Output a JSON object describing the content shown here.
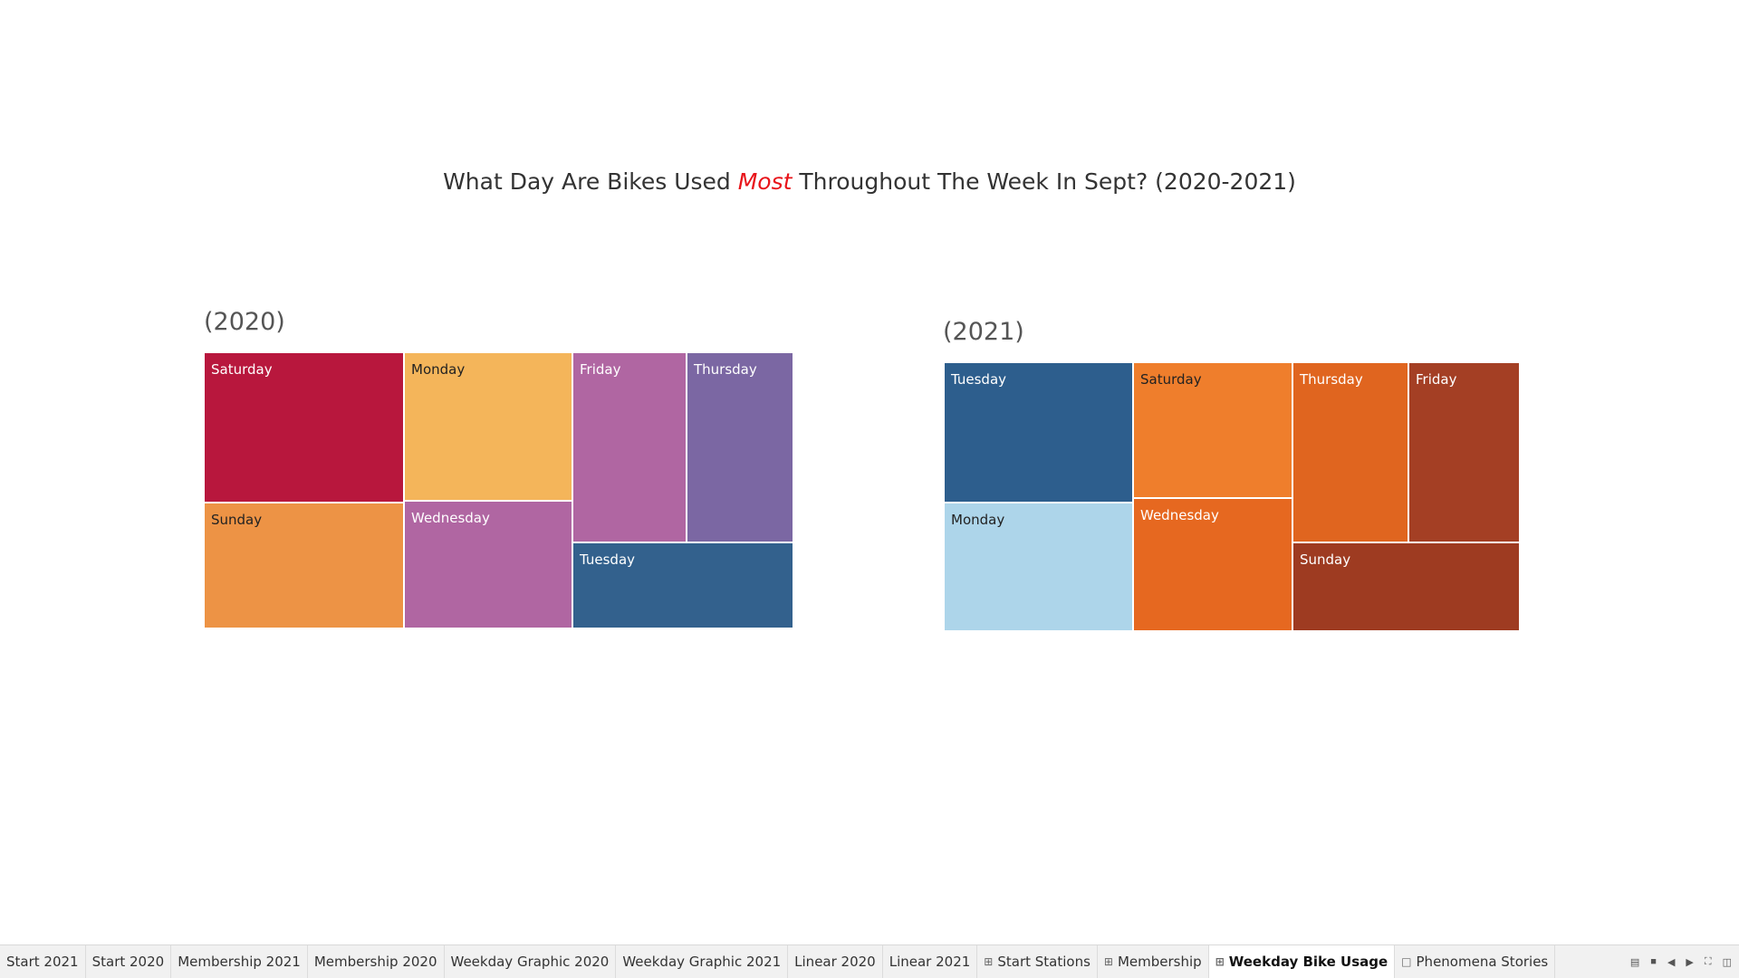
{
  "title": {
    "before": "What Day Are Bikes Used ",
    "accent": "Most",
    "after": " Throughout The Week In Sept? (2020-2021)",
    "accent_color": "#e8141a"
  },
  "chart_data": [
    {
      "type": "treemap",
      "title": "(2020)",
      "tiles": [
        {
          "label": "Saturday",
          "color": "#b8173d",
          "text_color": "#ffffff"
        },
        {
          "label": "Monday",
          "color": "#f4b55a",
          "text_color": "#222222"
        },
        {
          "label": "Friday",
          "color": "#b066a2",
          "text_color": "#ffffff"
        },
        {
          "label": "Thursday",
          "color": "#7b67a3",
          "text_color": "#ffffff"
        },
        {
          "label": "Sunday",
          "color": "#ed9345",
          "text_color": "#222222"
        },
        {
          "label": "Wednesday",
          "color": "#b066a2",
          "text_color": "#ffffff"
        },
        {
          "label": "Tuesday",
          "color": "#33618d",
          "text_color": "#ffffff"
        }
      ]
    },
    {
      "type": "treemap",
      "title": "(2021)",
      "tiles": [
        {
          "label": "Tuesday",
          "color": "#2d5e8d",
          "text_color": "#ffffff"
        },
        {
          "label": "Saturday",
          "color": "#ef7e2c",
          "text_color": "#222222"
        },
        {
          "label": "Thursday",
          "color": "#e0651f",
          "text_color": "#ffffff"
        },
        {
          "label": "Friday",
          "color": "#a43f24",
          "text_color": "#ffffff"
        },
        {
          "label": "Monday",
          "color": "#add5ea",
          "text_color": "#222222"
        },
        {
          "label": "Wednesday",
          "color": "#e66820",
          "text_color": "#ffffff"
        },
        {
          "label": "Sunday",
          "color": "#9e3b21",
          "text_color": "#ffffff"
        }
      ]
    }
  ],
  "tabs": [
    {
      "label": "Start 2021",
      "icon": "",
      "active": false
    },
    {
      "label": "Start 2020",
      "icon": "",
      "active": false
    },
    {
      "label": "Membership 2021",
      "icon": "",
      "active": false
    },
    {
      "label": "Membership 2020",
      "icon": "",
      "active": false
    },
    {
      "label": "Weekday Graphic 2020",
      "icon": "",
      "active": false
    },
    {
      "label": "Weekday Graphic 2021",
      "icon": "",
      "active": false
    },
    {
      "label": "Linear 2020",
      "icon": "",
      "active": false
    },
    {
      "label": "Linear 2021",
      "icon": "",
      "active": false
    },
    {
      "label": "Start Stations",
      "icon": "dashboard-icon",
      "active": false
    },
    {
      "label": "Membership",
      "icon": "dashboard-icon",
      "active": false
    },
    {
      "label": "Weekday Bike Usage",
      "icon": "dashboard-icon",
      "active": true
    },
    {
      "label": "Phenomena Stories",
      "icon": "story-icon",
      "active": false
    }
  ],
  "controls": [
    "show-filmstrip-icon",
    "show-tabs-icon",
    "prev-sheet-icon",
    "next-sheet-icon",
    "fullscreen-icon",
    "presentation-mode-icon"
  ]
}
